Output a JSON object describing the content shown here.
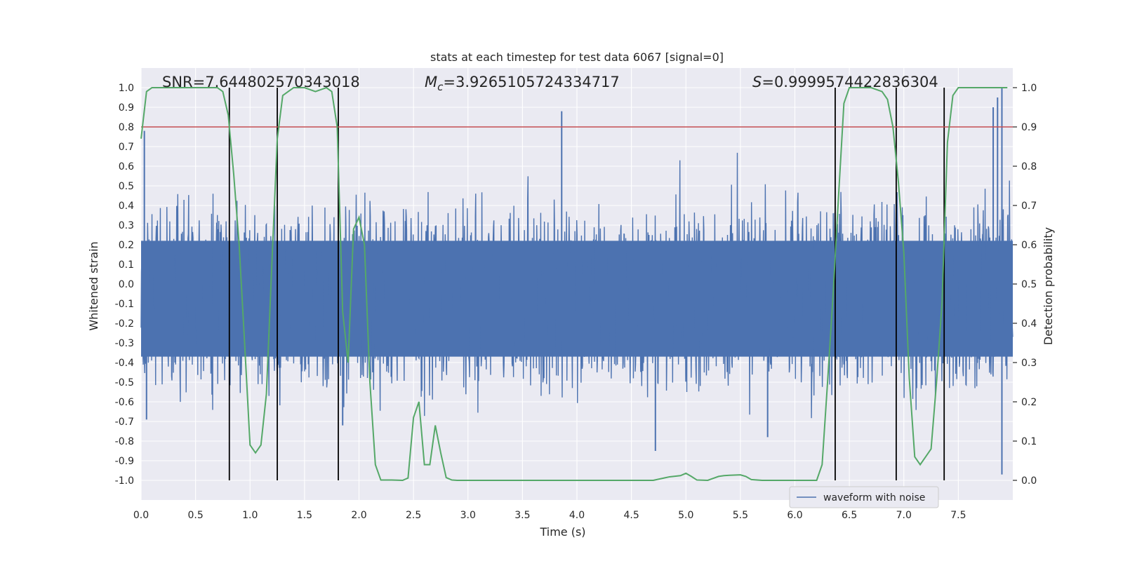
{
  "chart_data": {
    "type": "line",
    "title": "stats at each timestep for test data 6067 [signal=0]",
    "xlabel": "Time (s)",
    "ylabel": "Whitened strain",
    "ylabel_right": "Detection probability",
    "xlim": [
      0.0,
      8.0
    ],
    "ylim": [
      -1.1,
      1.1
    ],
    "ylim_right": [
      -0.05,
      1.05
    ],
    "x_ticks": [
      0.0,
      0.5,
      1.0,
      1.5,
      2.0,
      2.5,
      3.0,
      3.5,
      4.0,
      4.5,
      5.0,
      5.5,
      6.0,
      6.5,
      7.0,
      7.5
    ],
    "x_tick_labels": [
      "0.0",
      "0.5",
      "1.0",
      "1.5",
      "2.0",
      "2.5",
      "3.0",
      "3.5",
      "4.0",
      "4.5",
      "5.0",
      "5.5",
      "6.0",
      "6.5",
      "7.0",
      "7.5"
    ],
    "y_ticks": [
      -1.0,
      -0.9,
      -0.8,
      -0.7,
      -0.6,
      -0.5,
      -0.4,
      -0.3,
      -0.2,
      -0.1,
      0.0,
      0.1,
      0.2,
      0.3,
      0.4,
      0.5,
      0.6,
      0.7,
      0.8,
      0.9,
      1.0
    ],
    "y_tick_labels": [
      "-1.0",
      "-0.9",
      "-0.8",
      "-0.7",
      "-0.6",
      "-0.5",
      "-0.4",
      "-0.3",
      "-0.2",
      "-0.1",
      "0.0",
      "0.1",
      "0.2",
      "0.3",
      "0.4",
      "0.5",
      "0.6",
      "0.7",
      "0.8",
      "0.9",
      "1.0"
    ],
    "y_ticks_right": [
      0.0,
      0.1,
      0.2,
      0.3,
      0.4,
      0.5,
      0.6,
      0.7,
      0.8,
      0.9,
      1.0
    ],
    "y_tick_labels_right": [
      "0.0",
      "0.1",
      "0.2",
      "0.3",
      "0.4",
      "0.5",
      "0.6",
      "0.7",
      "0.8",
      "0.9",
      "1.0"
    ],
    "grid": true,
    "annotations": {
      "snr": "SNR=7.644802570343018",
      "mc_symbol": "M",
      "mc_sub": "c",
      "mc_value": "=3.9265105724334717",
      "s_symbol": "S",
      "s_value": "=0.9999574422836304"
    },
    "legend": {
      "label": "waveform with noise",
      "placement": "lower-right"
    },
    "threshold": {
      "value": 0.9,
      "axis": "right",
      "color": "#c44e52"
    },
    "event_lines": [
      0.81,
      1.25,
      1.81,
      6.37,
      6.93,
      7.37
    ],
    "noise_series": {
      "name": "waveform with noise",
      "color": "#4c72b0",
      "description": "whitened strain noise, dense band approx -0.37..0.22 with spikes",
      "points": 2400,
      "seed": 6067,
      "core_band": [
        -0.37,
        0.22
      ],
      "spikes_up": [
        [
          3.86,
          0.88
        ],
        [
          7.9,
          1.0
        ],
        [
          7.86,
          0.95
        ],
        [
          7.82,
          0.9
        ],
        [
          0.03,
          0.78
        ]
      ],
      "spikes_down": [
        [
          4.72,
          -0.85
        ],
        [
          7.9,
          -0.97
        ],
        [
          1.85,
          -0.72
        ],
        [
          0.05,
          -0.69
        ],
        [
          5.75,
          -0.78
        ]
      ]
    },
    "probability_series": {
      "name": "Detection probability",
      "color": "#55a868",
      "axis": "right",
      "x": [
        0.0,
        0.05,
        0.1,
        0.15,
        0.2,
        0.3,
        0.4,
        0.5,
        0.6,
        0.7,
        0.75,
        0.8,
        0.85,
        0.9,
        0.95,
        1.0,
        1.05,
        1.1,
        1.15,
        1.2,
        1.25,
        1.3,
        1.35,
        1.4,
        1.5,
        1.6,
        1.7,
        1.75,
        1.8,
        1.85,
        1.9,
        1.95,
        2.0,
        2.05,
        2.1,
        2.15,
        2.2,
        2.3,
        2.4,
        2.45,
        2.5,
        2.55,
        2.6,
        2.65,
        2.7,
        2.75,
        2.8,
        2.85,
        2.9,
        2.95,
        3.0,
        3.2,
        3.5,
        3.6,
        3.7,
        3.8,
        4.0,
        4.1,
        4.2,
        4.3,
        4.5,
        4.6,
        4.7,
        4.8,
        4.85,
        4.95,
        5.0,
        5.05,
        5.1,
        5.2,
        5.3,
        5.35,
        5.4,
        5.5,
        5.55,
        5.6,
        5.7,
        6.0,
        6.2,
        6.25,
        6.3,
        6.35,
        6.4,
        6.45,
        6.5,
        6.6,
        6.7,
        6.8,
        6.85,
        6.9,
        6.95,
        7.0,
        7.05,
        7.1,
        7.15,
        7.2,
        7.25,
        7.3,
        7.35,
        7.4,
        7.45,
        7.5,
        7.55,
        7.6,
        7.7,
        7.8,
        7.9,
        7.95
      ],
      "y": [
        0.87,
        0.99,
        1.0,
        1.0,
        1.0,
        1.0,
        1.0,
        1.0,
        1.0,
        1.0,
        0.99,
        0.93,
        0.78,
        0.6,
        0.35,
        0.09,
        0.07,
        0.09,
        0.22,
        0.55,
        0.87,
        0.98,
        0.99,
        1.0,
        1.0,
        0.99,
        1.0,
        0.99,
        0.9,
        0.43,
        0.3,
        0.64,
        0.67,
        0.6,
        0.25,
        0.04,
        0.001,
        0.001,
        0.0,
        0.006,
        0.16,
        0.2,
        0.04,
        0.04,
        0.14,
        0.07,
        0.007,
        0.001,
        0.0,
        0.0,
        0.0,
        0.0,
        0.0,
        0.0,
        0.0,
        0.0,
        0.0,
        0.0,
        0.0,
        0.0,
        0.0,
        0.0,
        0.0,
        0.006,
        0.009,
        0.012,
        0.018,
        0.01,
        0.001,
        0.0,
        0.01,
        0.012,
        0.013,
        0.014,
        0.01,
        0.002,
        0.0,
        0.0,
        0.0,
        0.04,
        0.25,
        0.47,
        0.72,
        0.96,
        1.0,
        1.0,
        1.0,
        0.99,
        0.97,
        0.9,
        0.76,
        0.58,
        0.26,
        0.06,
        0.04,
        0.06,
        0.08,
        0.25,
        0.45,
        0.86,
        0.98,
        1.0,
        1.0,
        1.0,
        1.0,
        1.0,
        1.0,
        1.0
      ]
    }
  }
}
